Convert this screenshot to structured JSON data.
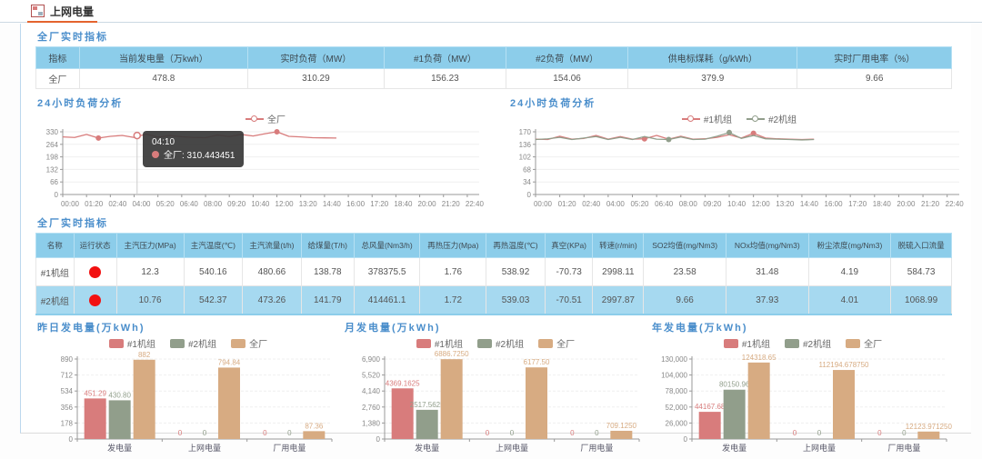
{
  "window": {
    "title": "上网电量"
  },
  "sections": {
    "s1": {
      "heading": "全厂实时指标",
      "table": {
        "headers": [
          "指标",
          "当前发电量（万kwh）",
          "实时负荷（MW）",
          "#1负荷（MW）",
          "#2负荷（MW）",
          "供电标煤耗（g/kWh）",
          "实时厂用电率（%）"
        ],
        "rows": [
          [
            "全厂",
            "478.8",
            "310.29",
            "156.23",
            "154.06",
            "379.9",
            "9.66"
          ]
        ]
      }
    },
    "s2": {
      "heading": "全厂实时指标",
      "table": {
        "headers": [
          "名称",
          "运行状态",
          "主汽压力(MPa)",
          "主汽温度(℃)",
          "主汽流量(t/h)",
          "给煤量(T/h)",
          "总风量(Nm3/h)",
          "再热压力(Mpa)",
          "再热温度(℃)",
          "真空(KPa)",
          "转速(r/min)",
          "SO2均值(mg/Nm3)",
          "NOx均值(mg/Nm3)",
          "粉尘浓度(mg/Nm3)",
          "脱硫入口流量"
        ],
        "rows": [
          {
            "name": "#1机组",
            "status": "running",
            "status_color": "#f21111",
            "values": [
              "12.3",
              "540.16",
              "480.66",
              "138.78",
              "378375.5",
              "1.76",
              "538.92",
              "-70.73",
              "2998.11",
              "23.58",
              "31.48",
              "4.19",
              "584.73"
            ]
          },
          {
            "name": "#2机组",
            "status": "running",
            "status_color": "#f21111",
            "values": [
              "10.76",
              "542.37",
              "473.26",
              "141.79",
              "414461.1",
              "1.72",
              "539.03",
              "-70.51",
              "2997.87",
              "9.66",
              "37.93",
              "4.01",
              "1068.99"
            ]
          }
        ]
      }
    }
  },
  "chart_data": [
    {
      "type": "line",
      "title": "24小时负荷分析",
      "x_labels": [
        "00:00",
        "01:20",
        "02:40",
        "04:00",
        "05:20",
        "06:40",
        "08:00",
        "09:20",
        "10:40",
        "12:00",
        "13:20",
        "14:40",
        "16:00",
        "17:20",
        "18:40",
        "20:00",
        "21:20",
        "22:40"
      ],
      "x_total_min": 1400,
      "sample_step_min": 40,
      "ylim": [
        0,
        330
      ],
      "yticks": [
        "330",
        "264",
        "198",
        "132",
        "66",
        "0"
      ],
      "series": [
        {
          "name": "全厂",
          "color": "#d87c7c",
          "markers": [
            3,
            18
          ],
          "values": [
            303,
            300,
            316,
            297,
            306,
            311,
            300,
            318,
            302,
            310,
            304,
            300,
            299,
            313,
            305,
            316,
            308,
            320,
            330,
            306,
            303,
            299,
            298,
            297
          ]
        }
      ],
      "hover": {
        "t_min": 250,
        "value": 310.443451
      },
      "tooltip": {
        "time": "04:10",
        "text": "全厂: 310.443451"
      }
    },
    {
      "type": "line",
      "title": "24小时负荷分析",
      "x_labels": [
        "00:00",
        "01:20",
        "02:40",
        "04:00",
        "05:20",
        "06:40",
        "08:00",
        "09:20",
        "10:40",
        "12:00",
        "13:20",
        "14:40",
        "16:00",
        "17:20",
        "18:40",
        "20:00",
        "21:20",
        "22:40"
      ],
      "x_total_min": 1400,
      "sample_step_min": 40,
      "ylim": [
        0,
        170
      ],
      "yticks": [
        "170",
        "136",
        "102",
        "68",
        "34",
        "0"
      ],
      "series": [
        {
          "name": "#1机组",
          "color": "#d87c7c",
          "markers": [
            9,
            18
          ],
          "values": [
            150,
            149,
            158,
            150,
            152,
            160,
            150,
            157,
            150,
            151,
            160,
            150,
            158,
            150,
            151,
            155,
            162,
            153,
            166,
            153,
            151,
            150,
            149,
            150
          ]
        },
        {
          "name": "#2机组",
          "color": "#919e8b",
          "markers": [
            11,
            16
          ],
          "values": [
            149,
            151,
            155,
            149,
            153,
            157,
            149,
            155,
            149,
            157,
            150,
            149,
            156,
            149,
            150,
            158,
            168,
            152,
            160,
            151,
            150,
            149,
            148,
            149
          ]
        }
      ]
    },
    {
      "type": "bar",
      "title": "昨日发电量(万kWh)",
      "categories": [
        "发电量",
        "上网电量",
        "厂用电量"
      ],
      "ylim": [
        0,
        890
      ],
      "yticks": [
        "890",
        "712",
        "534",
        "356",
        "178",
        "0"
      ],
      "series": [
        {
          "name": "#1机组",
          "color": "#d87c7c",
          "values": [
            451.29,
            0,
            0
          ],
          "labels": [
            "451.29",
            "0",
            "0"
          ]
        },
        {
          "name": "#2机组",
          "color": "#919e8b",
          "values": [
            430.8,
            0,
            0
          ],
          "labels": [
            "430.80",
            "0",
            "0"
          ]
        },
        {
          "name": "全厂",
          "color": "#d7ab82",
          "values": [
            882,
            794.84,
            87.36
          ],
          "labels": [
            "882",
            "794.84",
            "87.36"
          ]
        }
      ]
    },
    {
      "type": "bar",
      "title": "月发电量(万kWh)",
      "categories": [
        "发电量",
        "上网电量",
        "厂用电量"
      ],
      "ylim": [
        0,
        6900
      ],
      "yticks": [
        "6,900",
        "5,520",
        "4,140",
        "2,760",
        "1,380",
        "0"
      ],
      "series": [
        {
          "name": "#1机组",
          "color": "#d87c7c",
          "values": [
            4369.1625,
            0,
            0
          ],
          "labels": [
            "4369.1625",
            "0",
            "0"
          ]
        },
        {
          "name": "#2机组",
          "color": "#919e8b",
          "values": [
            2517.5625,
            0,
            0
          ],
          "labels": [
            "2517.5625",
            "0",
            "0"
          ]
        },
        {
          "name": "全厂",
          "color": "#d7ab82",
          "values": [
            6886.725,
            6177.5,
            709.125
          ],
          "labels": [
            "6886.7250",
            "6177.50",
            "709.1250"
          ]
        }
      ]
    },
    {
      "type": "bar",
      "title": "年发电量(万kWh)",
      "categories": [
        "发电量",
        "上网电量",
        "厂用电量"
      ],
      "ylim": [
        0,
        130000
      ],
      "yticks": [
        "130,000",
        "104,000",
        "78,000",
        "52,000",
        "26,000",
        "0"
      ],
      "series": [
        {
          "name": "#1机组",
          "color": "#d87c7c",
          "values": [
            44167.68,
            0,
            0
          ],
          "labels": [
            "44167.68",
            "0",
            "0"
          ]
        },
        {
          "name": "#2机组",
          "color": "#919e8b",
          "values": [
            80150.96,
            0,
            0
          ],
          "labels": [
            "80150.96",
            "0",
            "0"
          ]
        },
        {
          "name": "全厂",
          "color": "#d7ab82",
          "values": [
            124318.65,
            112194.67875,
            12123.97125
          ],
          "labels": [
            "124318.65",
            "112194.678750",
            "12123.971250"
          ]
        }
      ]
    }
  ]
}
